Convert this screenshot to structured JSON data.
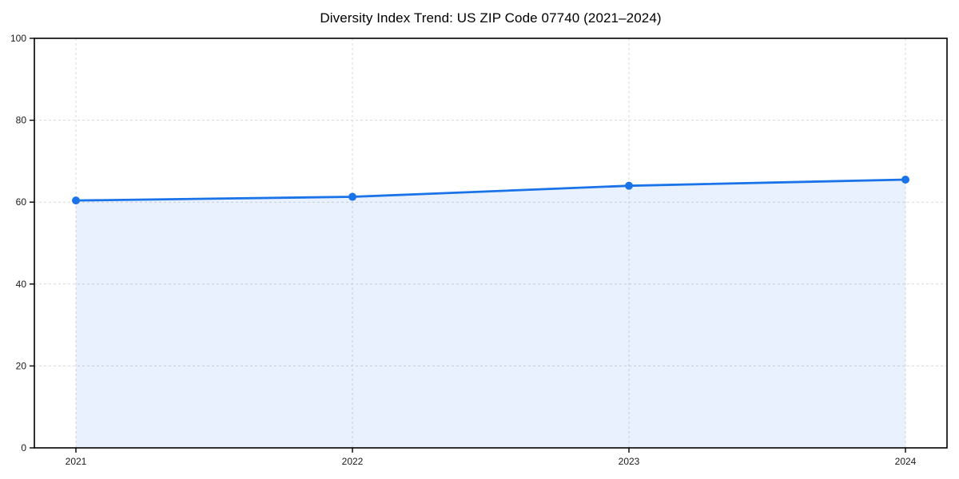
{
  "page": {
    "background": "#ffffff"
  },
  "chart_data": {
    "type": "area",
    "title": "Diversity Index Trend: US ZIP Code 07740 (2021–2024)",
    "categories": [
      "2021",
      "2022",
      "2023",
      "2024"
    ],
    "series": [
      {
        "name": "Diversity Index",
        "values": [
          60.4,
          61.3,
          64.0,
          65.5
        ]
      }
    ],
    "xlabel": "",
    "ylabel": "",
    "ylim": [
      0,
      100
    ],
    "yticks": [
      0,
      20,
      40,
      60,
      80,
      100
    ],
    "grid": true,
    "grid_style": "dashed",
    "legend": false,
    "marker": "circle",
    "colors": {
      "line": "#1a73e8",
      "fill": "#1a73e8",
      "fill_opacity": 0.1,
      "grid": "#d8d8d8",
      "axis": "#000000",
      "tick_text": "#1a1a1a",
      "title_text": "#000000"
    }
  }
}
